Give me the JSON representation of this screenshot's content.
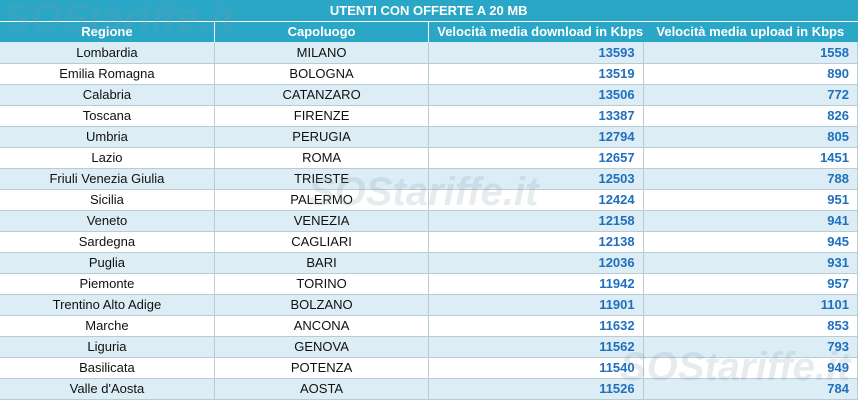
{
  "title": "UTENTI CON OFFERTE A 20 MB",
  "watermark": "SOStariffe.it",
  "table": {
    "columns": [
      "Regione",
      "Capoluogo",
      "Velocità media download in Kbps",
      "Velocità media upload in Kbps"
    ],
    "rows": [
      [
        "Lombardia",
        "MILANO",
        13593,
        1558
      ],
      [
        "Emilia Romagna",
        "BOLOGNA",
        13519,
        890
      ],
      [
        "Calabria",
        "CATANZARO",
        13506,
        772
      ],
      [
        "Toscana",
        "FIRENZE",
        13387,
        826
      ],
      [
        "Umbria",
        "PERUGIA",
        12794,
        805
      ],
      [
        "Lazio",
        "ROMA",
        12657,
        1451
      ],
      [
        "Friuli Venezia Giulia",
        "TRIESTE",
        12503,
        788
      ],
      [
        "Sicilia",
        "PALERMO",
        12424,
        951
      ],
      [
        "Veneto",
        "VENEZIA",
        12158,
        941
      ],
      [
        "Sardegna",
        "CAGLIARI",
        12138,
        945
      ],
      [
        "Puglia",
        "BARI",
        12036,
        931
      ],
      [
        "Piemonte",
        "TORINO",
        11942,
        957
      ],
      [
        "Trentino Alto Adige",
        "BOLZANO",
        11901,
        1101
      ],
      [
        "Marche",
        "ANCONA",
        11632,
        853
      ],
      [
        "Liguria",
        "GENOVA",
        11562,
        793
      ],
      [
        "Basilicata",
        "POTENZA",
        11540,
        949
      ],
      [
        "Valle d'Aosta",
        "AOSTA",
        11526,
        784
      ]
    ]
  }
}
